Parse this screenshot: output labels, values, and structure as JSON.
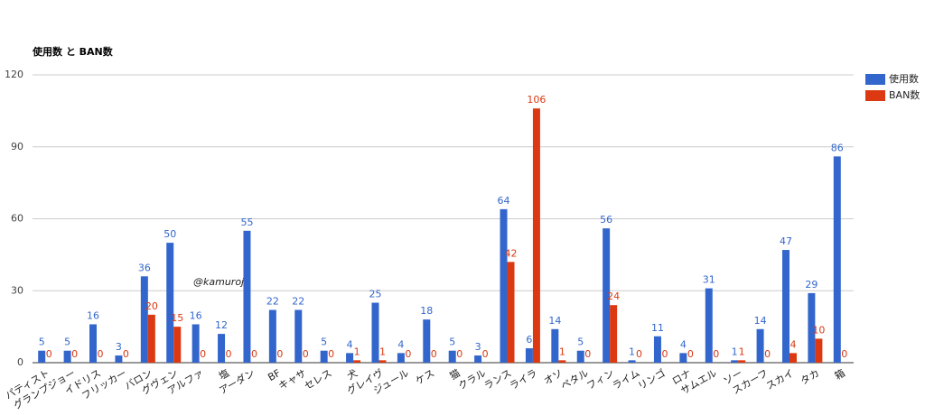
{
  "chart_data": {
    "type": "bar",
    "title": "使用数 と BAN数",
    "watermark": "@kamuroji",
    "categories": [
      "パティスト",
      "グランプジョー",
      "イドリス",
      "フリッカー",
      "バロン",
      "グヴェン",
      "アルファ",
      "塩",
      "アーダン",
      "BF",
      "キャサ",
      "セレス",
      "犬",
      "グレイヴ",
      "ジュール",
      "ケス",
      "猫",
      "クラル",
      "ランス",
      "ライラ",
      "オソ",
      "ペタル",
      "フィン",
      "ライム",
      "リンゴ",
      "ロナ",
      "サムエル",
      "ソー",
      "スカーフ",
      "スカイ",
      "タカ",
      "箱"
    ],
    "series": [
      {
        "name": "使用数",
        "color": "#3366cc",
        "values": [
          5,
          5,
          16,
          3,
          36,
          50,
          16,
          12,
          55,
          22,
          22,
          5,
          4,
          25,
          4,
          18,
          5,
          3,
          64,
          6,
          14,
          5,
          56,
          1,
          11,
          4,
          31,
          1,
          14,
          47,
          29,
          86
        ]
      },
      {
        "name": "BAN数",
        "color": "#dc3912",
        "values": [
          0,
          0,
          0,
          0,
          20,
          15,
          0,
          0,
          0,
          0,
          0,
          0,
          1,
          1,
          0,
          0,
          0,
          0,
          42,
          106,
          1,
          0,
          24,
          0,
          0,
          0,
          0,
          1,
          0,
          4,
          10,
          0
        ]
      }
    ],
    "ylim": [
      0,
      120
    ],
    "yticks": [
      0,
      30,
      60,
      90,
      120
    ],
    "grid": true,
    "legend": "right"
  }
}
